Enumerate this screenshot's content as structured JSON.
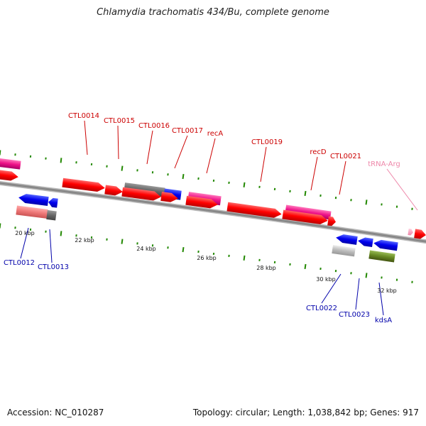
{
  "title": "Chlamydia trachomatis 434/Bu, complete genome",
  "footer": {
    "accession": "Accession: NC_010287",
    "summary": "Topology: circular; Length: 1,038,842 bp; Genes: 917"
  },
  "colors": {
    "forward_label": "#cc0000",
    "reverse_label": "#0000aa",
    "trna_label": "#ee88aa",
    "red_gene": "#ff0000",
    "pink_gene": "#ee1188",
    "blue_gene": "#0000ee",
    "grey_gene": "#666666",
    "salmon_gene": "#ee7777",
    "light_grey_gene": "#bbbbbb",
    "olive_gene": "#668822",
    "backbone": "#888888",
    "tick": "#228800"
  },
  "scale_labels": [
    "20 kbp",
    "22 kbp",
    "24 kbp",
    "26 kbp",
    "28 kbp",
    "30 kbp",
    "32 kbp"
  ],
  "forward_labels": [
    "CTL0014",
    "CTL0015",
    "CTL0016",
    "CTL0017",
    "recA",
    "CTL0019",
    "recD",
    "CTL0021",
    "tRNA-Arg"
  ],
  "reverse_labels": [
    "CTL0012",
    "CTL0013",
    "CTL0022",
    "CTL0023",
    "kdsA"
  ]
}
